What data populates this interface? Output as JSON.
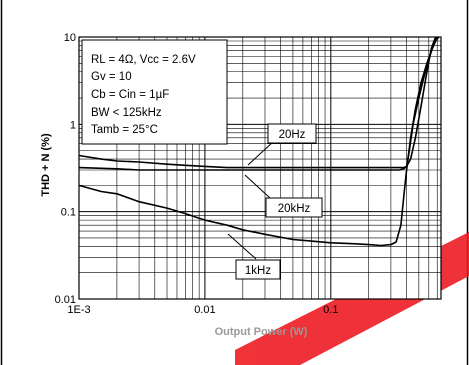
{
  "chart_data": {
    "type": "line",
    "xlabel": "Output Power (W)",
    "ylabel": "THD + N (%)",
    "x_scale": "log",
    "y_scale": "log",
    "xlim": [
      0.001,
      0.75
    ],
    "ylim": [
      0.01,
      10
    ],
    "x_ticks": [
      {
        "value": 0.001,
        "label": "1E-3"
      },
      {
        "value": 0.01,
        "label": "0.01"
      },
      {
        "value": 0.1,
        "label": "0.1"
      }
    ],
    "y_ticks": [
      {
        "value": 0.01,
        "label": "0.01"
      },
      {
        "value": 0.1,
        "label": "0.1"
      },
      {
        "value": 1,
        "label": "1"
      },
      {
        "value": 10,
        "label": "10"
      }
    ],
    "grid": true,
    "conditions": [
      "RL = 4Ω, Vcc = 2.6V",
      "Gv = 10",
      "Cb = Cin = 1µF",
      "BW < 125kHz",
      "Tamb = 25°C"
    ],
    "series": [
      {
        "name": "20Hz",
        "x": [
          0.001,
          0.002,
          0.003,
          0.005,
          0.007,
          0.01,
          0.02,
          0.03,
          0.05,
          0.1,
          0.2,
          0.3,
          0.35,
          0.38,
          0.4,
          0.43,
          0.47,
          0.52,
          0.58,
          0.63,
          0.68
        ],
        "y": [
          0.32,
          0.31,
          0.3,
          0.3,
          0.3,
          0.3,
          0.3,
          0.3,
          0.3,
          0.3,
          0.3,
          0.3,
          0.3,
          0.31,
          0.33,
          0.4,
          0.7,
          1.6,
          4.0,
          7.5,
          10
        ]
      },
      {
        "name": "20kHz",
        "x": [
          0.001,
          0.0015,
          0.002,
          0.003,
          0.005,
          0.007,
          0.01,
          0.015,
          0.02,
          0.03,
          0.05,
          0.1,
          0.15,
          0.2,
          0.25,
          0.3,
          0.35,
          0.38,
          0.4,
          0.42,
          0.45,
          0.5,
          0.55,
          0.6,
          0.65,
          0.7
        ],
        "y": [
          0.44,
          0.4,
          0.38,
          0.37,
          0.35,
          0.34,
          0.33,
          0.32,
          0.32,
          0.32,
          0.32,
          0.32,
          0.32,
          0.32,
          0.32,
          0.32,
          0.32,
          0.32,
          0.33,
          0.5,
          1.0,
          2.0,
          3.5,
          5.5,
          8.0,
          10
        ]
      },
      {
        "name": "1kHz",
        "x": [
          0.001,
          0.0015,
          0.002,
          0.003,
          0.005,
          0.007,
          0.01,
          0.015,
          0.02,
          0.03,
          0.05,
          0.07,
          0.1,
          0.15,
          0.2,
          0.25,
          0.3,
          0.33,
          0.36,
          0.38,
          0.4,
          0.43,
          0.47,
          0.52,
          0.58,
          0.63,
          0.68,
          0.72
        ],
        "y": [
          0.2,
          0.17,
          0.16,
          0.13,
          0.11,
          0.095,
          0.08,
          0.07,
          0.062,
          0.055,
          0.048,
          0.046,
          0.044,
          0.043,
          0.042,
          0.041,
          0.042,
          0.045,
          0.07,
          0.15,
          0.3,
          0.7,
          1.5,
          3.0,
          5.0,
          7.0,
          9.0,
          10
        ]
      }
    ]
  }
}
